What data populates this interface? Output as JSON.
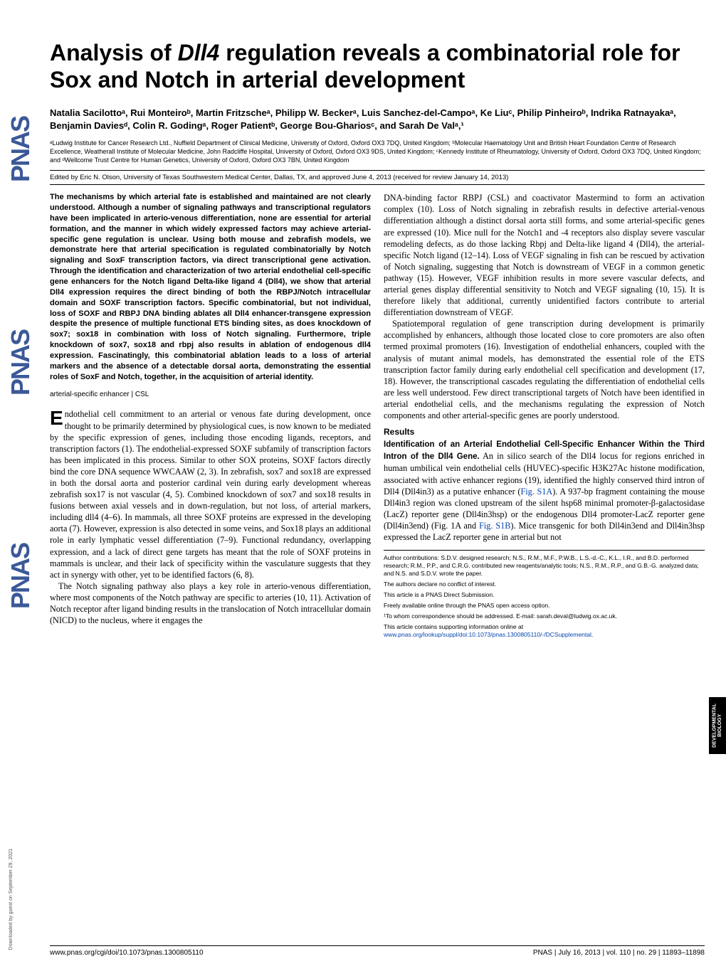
{
  "sidebar": {
    "text": "PNAS"
  },
  "title": {
    "pre": "Analysis of ",
    "italic": "Dll4",
    "post": " regulation reveals a combinatorial role for Sox and Notch in arterial development"
  },
  "authors": "Natalia Sacilottoᵃ, Rui Monteiroᵇ, Martin Fritzscheᵃ, Philipp W. Beckerᵃ, Luis Sanchez-del-Campoᵃ, Ke Liuᶜ, Philip Pinheiroᵇ, Indrika Ratnayakaᵃ, Benjamin Daviesᵈ, Colin R. Godingᵃ, Roger Patientᵇ, George Bou-Ghariosᶜ, and Sarah De Valᵃ,¹",
  "affiliations": "ᵃLudwig Institute for Cancer Research Ltd., Nuffield Department of Clinical Medicine, University of Oxford, Oxford OX3 7DQ, United Kingdom; ᵇMolecular Haematology Unit and British Heart Foundation Centre of Research Excellence, Weatherall Institute of Molecular Medicine, John Radcliffe Hospital, University of Oxford, Oxford OX3 9DS, United Kingdom; ᶜKennedy Institute of Rheumatology, University of Oxford, Oxford OX3 7DQ, United Kingdom; and ᵈWellcome Trust Centre for Human Genetics, University of Oxford, Oxford OX3 7BN, United Kingdom",
  "edited": "Edited by Eric N. Olson, University of Texas Southwestern Medical Center, Dallas, TX, and approved June 4, 2013 (received for review January 14, 2013)",
  "abstract": "The mechanisms by which arterial fate is established and maintained are not clearly understood. Although a number of signaling pathways and transcriptional regulators have been implicated in arterio-venous differentiation, none are essential for arterial formation, and the manner in which widely expressed factors may achieve arterial-specific gene regulation is unclear. Using both mouse and zebrafish models, we demonstrate here that arterial specification is regulated combinatorially by Notch signaling and SoxF transcription factors, via direct transcriptional gene activation. Through the identification and characterization of two arterial endothelial cell-specific gene enhancers for the Notch ligand Delta-like ligand 4 (Dll4), we show that arterial Dll4 expression requires the direct binding of both the RBPJ/Notch intracellular domain and SOXF transcription factors. Specific combinatorial, but not individual, loss of SOXF and RBPJ DNA binding ablates all Dll4 enhancer-transgene expression despite the presence of multiple functional ETS binding sites, as does knockdown of sox7; sox18 in combination with loss of Notch signaling. Furthermore, triple knockdown of sox7, sox18 and rbpj also results in ablation of endogenous dll4 expression. Fascinatingly, this combinatorial ablation leads to a loss of arterial markers and the absence of a detectable dorsal aorta, demonstrating the essential roles of SoxF and Notch, together, in the acquisition of arterial identity.",
  "keywords": "arterial-specific enhancer | CSL",
  "bodyLeft": {
    "dropcap": "E",
    "p1": "ndothelial cell commitment to an arterial or venous fate during development, once thought to be primarily determined by physiological cues, is now known to be mediated by the specific expression of genes, including those encoding ligands, receptors, and transcription factors (1). The endothelial-expressed SOXF subfamily of transcription factors has been implicated in this process. Similar to other SOX proteins, SOXF factors directly bind the core DNA sequence WWCAAW (2, 3). In zebrafish, sox7 and sox18 are expressed in both the dorsal aorta and posterior cardinal vein during early development whereas zebrafish sox17 is not vascular (4, 5). Combined knockdown of sox7 and sox18 results in fusions between axial vessels and in down-regulation, but not loss, of arterial markers, including dll4 (4–6). In mammals, all three SOXF proteins are expressed in the developing aorta (7). However, expression is also detected in some veins, and Sox18 plays an additional role in early lymphatic vessel differentiation (7–9). Functional redundancy, overlapping expression, and a lack of direct gene targets has meant that the role of SOXF proteins in mammals is unclear, and their lack of specificity within the vasculature suggests that they act in synergy with other, yet to be identified factors (6, 8).",
    "p2": "The Notch signaling pathway also plays a key role in arterio-venous differentiation, where most components of the Notch pathway are specific to arteries (10, 11). Activation of Notch receptor after ligand binding results in the translocation of Notch intracellular domain (NICD) to the nucleus, where it engages the"
  },
  "bodyRight": {
    "p1": "DNA-binding factor RBPJ (CSL) and coactivator Mastermind to form an activation complex (10). Loss of Notch signaling in zebrafish results in defective arterial-venous differentiation although a distinct dorsal aorta still forms, and some arterial-specific genes are expressed (10). Mice null for the Notch1 and -4 receptors also display severe vascular remodeling defects, as do those lacking Rbpj and Delta-like ligand 4 (Dll4), the arterial-specific Notch ligand (12–14). Loss of VEGF signaling in fish can be rescued by activation of Notch signaling, suggesting that Notch is downstream of VEGF in a common genetic pathway (15). However, VEGF inhibition results in more severe vascular defects, and arterial genes display differential sensitivity to Notch and VEGF signaling (10, 15). It is therefore likely that additional, currently unidentified factors contribute to arterial differentiation downstream of VEGF.",
    "p2": "Spatiotemporal regulation of gene transcription during development is primarily accomplished by enhancers, although those located close to core promoters are also often termed proximal promoters (16). Investigation of endothelial enhancers, coupled with the analysis of mutant animal models, has demonstrated the essential role of the ETS transcription factor family during early endothelial cell specification and development (17, 18). However, the transcriptional cascades regulating the differentiation of endothelial cells are less well understood. Few direct transcriptional targets of Notch have been identified in arterial endothelial cells, and the mechanisms regulating the expression of Notch components and other arterial-specific genes are poorly understood.",
    "resultsHead": "Results",
    "subhead": "Identification of an Arterial Endothelial Cell-Specific Enhancer Within the Third Intron of the Dll4 Gene.",
    "p3a": " An in silico search of the Dll4 locus for regions enriched in human umbilical vein endothelial cells (HUVEC)-specific H3K27Ac histone modification, associated with active enhancer regions (19), identified the highly conserved third intron of Dll4 (Dll4in3) as a putative enhancer (",
    "link1": "Fig. S1A",
    "p3b": "). A 937-bp fragment containing the mouse Dll4in3 region was cloned upstream of the silent hsp68 minimal promoter-β-galactosidase (LacZ) reporter gene (Dll4in3hsp) or the endogenous Dll4 promoter-LacZ reporter gene (Dll4in3end) (Fig. 1A and ",
    "link2": "Fig. S1B",
    "p3c": "). Mice transgenic for both Dll4in3end and Dll4in3hsp expressed the LacZ reporter gene in arterial but not"
  },
  "footnotes": {
    "f1": "Author contributions: S.D.V. designed research; N.S., R.M., M.F., P.W.B., L.S.-d.-C., K.L., I.R., and B.D. performed research; R.M., P.P., and C.R.G. contributed new reagents/analytic tools; N.S., R.M., R.P., and G.B.-G. analyzed data; and N.S. and S.D.V. wrote the paper.",
    "f2": "The authors declare no conflict of interest.",
    "f3": "This article is a PNAS Direct Submission.",
    "f4": "Freely available online through the PNAS open access option.",
    "f5": "¹To whom correspondence should be addressed. E-mail: sarah.deval@ludwig.ox.ac.uk.",
    "f6a": "This article contains supporting information online at ",
    "f6link": "www.pnas.org/lookup/suppl/doi:10.1073/pnas.1300805110/-/DCSupplemental",
    "f6b": "."
  },
  "footer": {
    "left": "www.pnas.org/cgi/doi/10.1073/pnas.1300805110",
    "right": "PNAS | July 16, 2013 | vol. 110 | no. 29 | 11893–11898"
  },
  "devbio": "DEVELOPMENTAL BIOLOGY",
  "downloaded": "Downloaded by guest on September 29, 2021"
}
